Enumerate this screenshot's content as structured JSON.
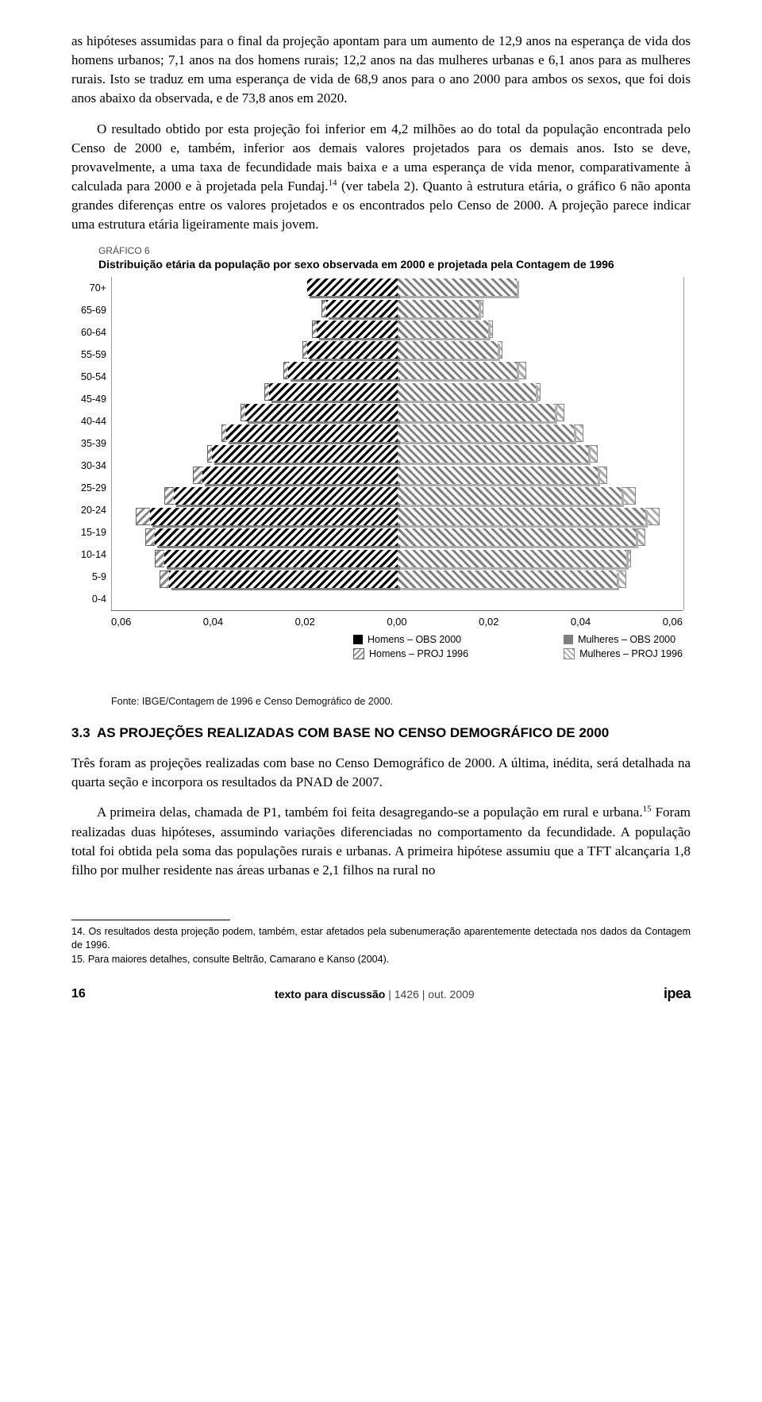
{
  "paragraphs": {
    "p1": "as hipóteses assumidas para o final da projeção apontam para um aumento de 12,9 anos na esperança de vida dos homens urbanos; 7,1 anos na dos homens rurais; 12,2 anos na das mulheres urbanas e 6,1 anos para as mulheres rurais. Isto se traduz em uma esperança de vida de 68,9 anos para o ano 2000 para ambos os sexos, que foi dois anos abaixo da observada, e de 73,8 anos em 2020.",
    "p2_a": "O resultado obtido por esta projeção foi inferior em 4,2 milhões ao do total da população encontrada pelo Censo de 2000 e, também, inferior aos demais valores projetados para os demais anos. Isto se deve, provavelmente, a uma taxa de fecundidade mais baixa e a uma esperança de vida menor, comparativamente à calculada para 2000 e à projetada pela Fundaj.",
    "p2_b": " (ver tabela 2). Quanto à estrutura etária, o gráfico 6 não aponta grandes diferenças entre os valores projetados e os encontrados pelo Censo de 2000. A projeção parece indicar uma estrutura etária ligeiramente mais jovem.",
    "p3": "Três foram as projeções realizadas com base no Censo Demográfico de 2000. A última, inédita, será detalhada na quarta seção e incorpora os resultados da PNAD de 2007.",
    "p4_a": "A primeira delas, chamada de P1, também foi feita desagregando-se a população em rural e urbana.",
    "p4_b": " Foram realizadas duas hipóteses, assumindo variações diferenciadas no comportamento da fecundidade. A população total foi obtida pela soma das populações rurais e urbanas. A primeira hipótese assumiu que a TFT alcançaria 1,8 filho por mulher residente nas áreas urbanas e 2,1 filhos na rural no"
  },
  "chart": {
    "label": "GRÁFICO 6",
    "title": "Distribuição etária da população por sexo observada em 2000 e projetada pela Contagem de 1996",
    "fonte": "Fonte: IBGE/Contagem de 1996 e Censo Demográfico de 2000.",
    "age_labels": [
      "70+",
      "65-69",
      "60-64",
      "55-59",
      "50-54",
      "45-49",
      "40-44",
      "35-39",
      "30-34",
      "25-29",
      "20-24",
      "15-19",
      "10-14",
      "5-9",
      "0-4"
    ],
    "x_ticks": [
      "0,06",
      "0,04",
      "0,02",
      "0,00",
      "0,02",
      "0,04",
      "0,06"
    ],
    "x_max": 0.06,
    "legend": {
      "homens_obs": "Homens – OBS 2000",
      "homens_proj": "Homens – PROJ 1996",
      "mulheres_obs": "Mulheres – OBS 2000",
      "mulheres_proj": "Mulheres – PROJ 1996"
    },
    "data": [
      {
        "age": "70+",
        "m_obs": 0.019,
        "m_proj": 0.019,
        "f_obs": 0.025,
        "f_proj": 0.025
      },
      {
        "age": "65-69",
        "m_obs": 0.015,
        "m_proj": 0.016,
        "f_obs": 0.017,
        "f_proj": 0.018
      },
      {
        "age": "60-64",
        "m_obs": 0.017,
        "m_proj": 0.018,
        "f_obs": 0.019,
        "f_proj": 0.02
      },
      {
        "age": "55-59",
        "m_obs": 0.019,
        "m_proj": 0.02,
        "f_obs": 0.021,
        "f_proj": 0.022
      },
      {
        "age": "50-54",
        "m_obs": 0.023,
        "m_proj": 0.024,
        "f_obs": 0.025,
        "f_proj": 0.027
      },
      {
        "age": "45-49",
        "m_obs": 0.027,
        "m_proj": 0.028,
        "f_obs": 0.029,
        "f_proj": 0.03
      },
      {
        "age": "40-44",
        "m_obs": 0.032,
        "m_proj": 0.033,
        "f_obs": 0.033,
        "f_proj": 0.035
      },
      {
        "age": "35-39",
        "m_obs": 0.036,
        "m_proj": 0.037,
        "f_obs": 0.037,
        "f_proj": 0.039
      },
      {
        "age": "30-34",
        "m_obs": 0.039,
        "m_proj": 0.04,
        "f_obs": 0.04,
        "f_proj": 0.042
      },
      {
        "age": "25-29",
        "m_obs": 0.041,
        "m_proj": 0.043,
        "f_obs": 0.042,
        "f_proj": 0.044
      },
      {
        "age": "20-24",
        "m_obs": 0.047,
        "m_proj": 0.049,
        "f_obs": 0.047,
        "f_proj": 0.05
      },
      {
        "age": "15-19",
        "m_obs": 0.052,
        "m_proj": 0.055,
        "f_obs": 0.052,
        "f_proj": 0.055
      },
      {
        "age": "10-14",
        "m_obs": 0.051,
        "m_proj": 0.053,
        "f_obs": 0.05,
        "f_proj": 0.052
      },
      {
        "age": "5-9",
        "m_obs": 0.049,
        "m_proj": 0.051,
        "f_obs": 0.048,
        "f_proj": 0.049
      },
      {
        "age": "0-4",
        "m_obs": 0.048,
        "m_proj": 0.05,
        "f_obs": 0.046,
        "f_proj": 0.048
      }
    ]
  },
  "section": {
    "num": "3.3",
    "title": "AS PROJEÇÕES REALIZADAS COM BASE NO CENSO DEMOGRÁFICO DE 2000"
  },
  "footnotes": {
    "n14": "14. Os resultados desta projeção podem, também, estar afetados pela subenumeração aparentemente detectada nos dados da Contagem de 1996.",
    "n15": "15. Para maiores detalhes, consulte Beltrão, Camarano e Kanso (2004)."
  },
  "footer": {
    "page": "16",
    "series_bold": "texto para discussão",
    "series_rest": " | 1426 | out. 2009",
    "logo": "ipea"
  },
  "notes_sup": {
    "n14": "14",
    "n15": "15"
  }
}
